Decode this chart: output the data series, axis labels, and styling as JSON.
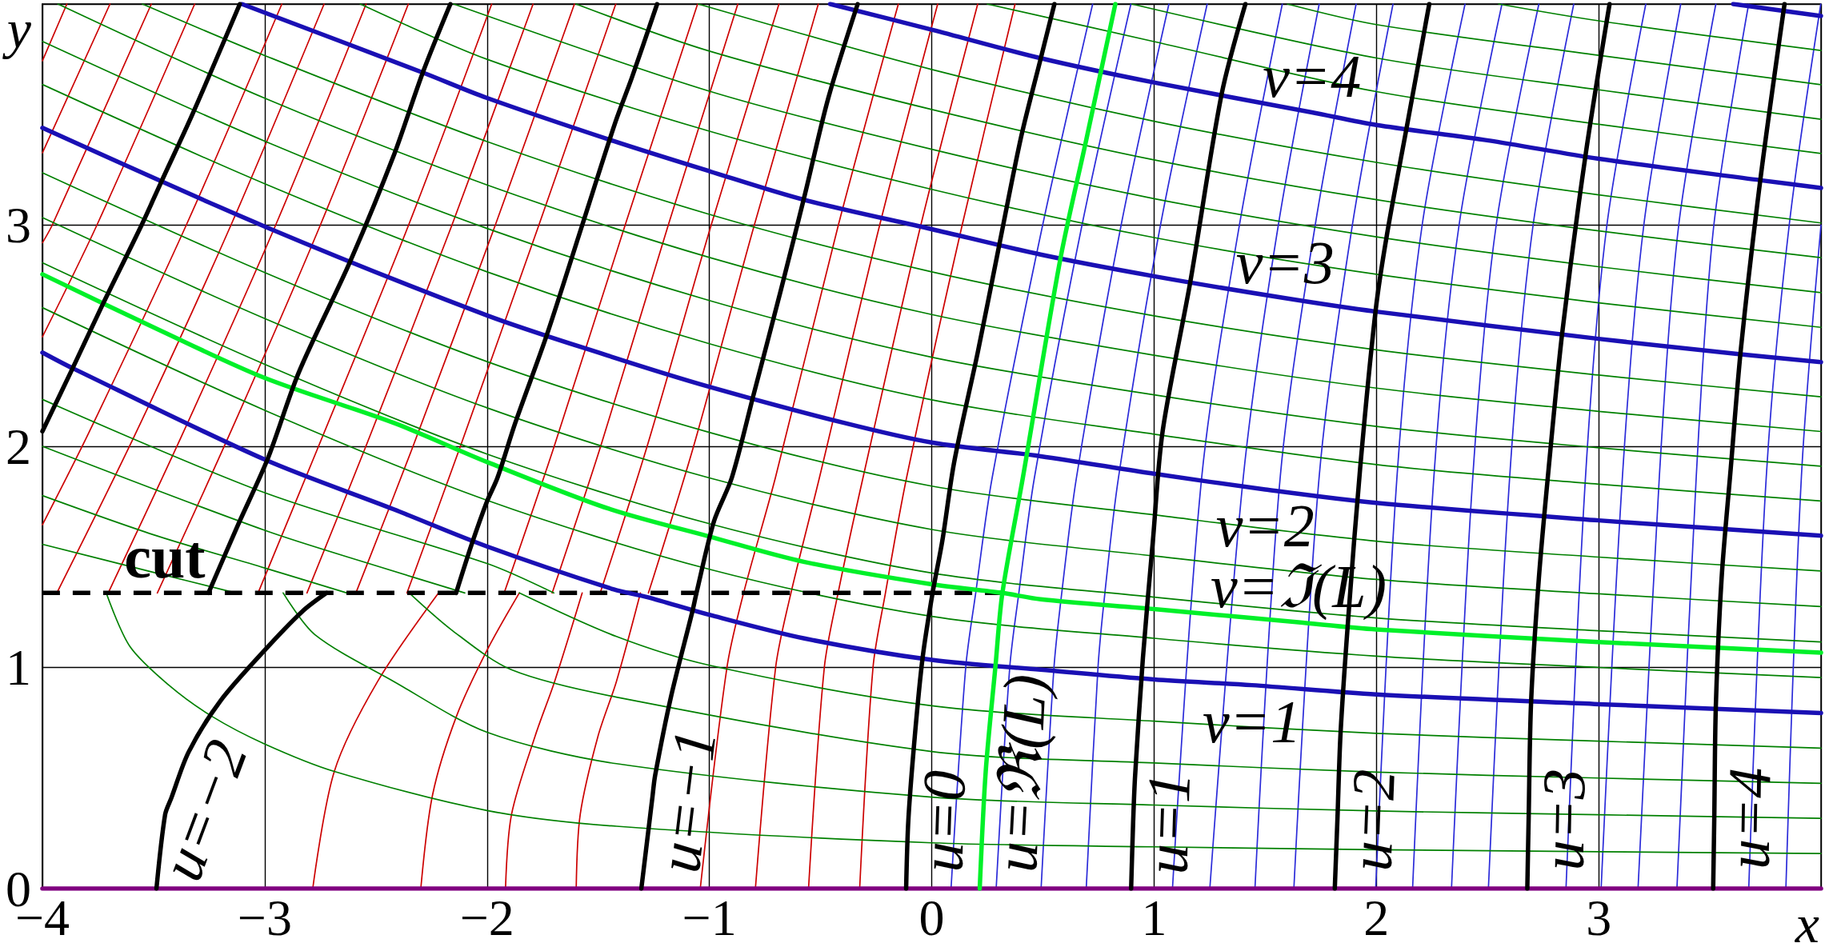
{
  "chart_data": {
    "type": "line",
    "xlabel": "x",
    "ylabel": "y",
    "xlim": [
      -4,
      4
    ],
    "ylim": [
      0,
      4
    ],
    "xticks": [
      {
        "value": -4,
        "label": "−4"
      },
      {
        "value": -3,
        "label": "−3"
      },
      {
        "value": -2,
        "label": "−2"
      },
      {
        "value": -1,
        "label": "−1"
      },
      0,
      1,
      2,
      3
    ],
    "yticks": [
      0,
      1,
      2,
      3
    ],
    "grid": true,
    "annotations": [
      {
        "text": "u=−2",
        "x": -3.42,
        "y": 0.41
      },
      {
        "text": "u=−1",
        "x": -1.256,
        "y": 0.415
      },
      {
        "text": "u=0",
        "x": -0.105,
        "y": 0.31
      },
      {
        "text": "u=ℜ(L)",
        "x": 0.243,
        "y": 0.53
      },
      {
        "text": "u=1",
        "x": 0.906,
        "y": 0.3
      },
      {
        "text": "u=2",
        "x": 1.825,
        "y": 0.315
      },
      {
        "text": "u=3",
        "x": 2.685,
        "y": 0.315
      },
      {
        "text": "u=4",
        "x": 3.52,
        "y": 0.32
      },
      {
        "text": "v=4",
        "x": 1.71,
        "y": 3.51
      },
      {
        "text": "v=3",
        "x": 1.59,
        "y": 2.67
      },
      {
        "text": "v=2",
        "x": 1.5,
        "y": 1.805
      },
      {
        "text": "v=ℑ(L)",
        "x": 1.65,
        "y": 1.204
      },
      {
        "text": "v=1",
        "x": 1.44,
        "y": 0.92
      },
      {
        "text": "cut",
        "x": -3.45,
        "y": 1.337
      }
    ],
    "series": [
      {
        "color": "#cc0000",
        "x": [
          -3.315,
          -3.755,
          -4
        ],
        "values": [
          4,
          3,
          2.495
        ]
      },
      {
        "color": "#cc0000",
        "x": [
          -3.51,
          -3.956,
          -4
        ],
        "values": [
          4,
          3,
          2.92
        ]
      },
      {
        "color": "#cc0000",
        "x": [
          -3.696,
          -4
        ],
        "values": [
          4,
          3.327
        ]
      },
      {
        "color": "#cc0000",
        "x": [
          -3.89,
          -4
        ],
        "values": [
          4,
          3.743
        ]
      },
      {
        "color": "#cc0000",
        "x": [
          -2.923,
          -3.353,
          -3.788,
          -4
        ],
        "values": [
          4,
          3,
          2.068,
          1.645
        ]
      },
      {
        "color": "#cc0000",
        "x": [
          -2.733,
          -3.152,
          -3.576,
          -3.935
        ],
        "values": [
          4,
          3,
          2.068,
          1.337
        ]
      },
      {
        "color": "#cc0000",
        "x": [
          -2.544,
          -2.951,
          -3.364,
          -3.704
        ],
        "values": [
          4,
          3,
          2.068,
          1.337
        ]
      },
      {
        "color": "#cc0000",
        "x": [
          -2.354,
          -2.75,
          -3.152,
          -3.483
        ],
        "values": [
          4,
          3,
          2.068,
          1.337
        ]
      },
      {
        "color": "#cc0000",
        "x": [
          -1.979,
          -2.353,
          -2.758,
          -3.03
        ],
        "values": [
          4,
          3,
          2,
          1.337
        ]
      },
      {
        "color": "#cc0000",
        "x": [
          -1.793,
          -2.158,
          -2.545,
          -2.81
        ],
        "values": [
          4,
          3,
          2,
          1.337
        ]
      },
      {
        "color": "#cc0000",
        "x": [
          -1.607,
          -1.963,
          -2.333,
          -2.59
        ],
        "values": [
          4,
          3,
          2,
          1.337
        ]
      },
      {
        "color": "#cc0000",
        "x": [
          -1.421,
          -1.767,
          -2.12,
          -2.36
        ],
        "values": [
          4,
          3,
          2,
          1.337
        ]
      },
      {
        "color": "#cc0000",
        "x": [
          -1.053,
          -1.379,
          -1.698,
          -1.923
        ],
        "values": [
          4,
          3,
          2,
          1.337
        ]
      },
      {
        "color": "#cc0000",
        "x": [
          -0.872,
          -1.185,
          -1.489,
          -1.707
        ],
        "values": [
          4,
          3,
          2,
          1.337
        ]
      },
      {
        "color": "#cc0000",
        "x": [
          -0.687,
          -0.992,
          -1.28,
          -1.491
        ],
        "values": [
          4,
          3,
          2,
          1.337
        ]
      },
      {
        "color": "#cc0000",
        "x": [
          -0.51,
          -0.798,
          -1.071,
          -1.274
        ],
        "values": [
          4,
          3,
          2,
          1.337
        ]
      },
      {
        "color": "#cc0000",
        "x": [
          -1.041,
          -0.921,
          -0.846,
          -0.703,
          -0.42,
          -0.15
        ],
        "values": [
          0,
          1,
          1.337,
          1.858,
          3,
          4
        ]
      },
      {
        "color": "#cc0000",
        "x": [
          -0.793,
          -0.702,
          -0.633,
          -0.505,
          -0.234,
          0.027
        ],
        "values": [
          0,
          1,
          1.337,
          1.858,
          3,
          4
        ]
      },
      {
        "color": "#cc0000",
        "x": [
          -0.554,
          -0.483,
          -0.421,
          -0.309,
          -0.049,
          0.207
        ],
        "values": [
          0,
          1,
          1.337,
          1.858,
          3,
          4
        ]
      },
      {
        "color": "#cc0000",
        "x": [
          -0.324,
          -0.264,
          -0.208,
          -0.113,
          0.137,
          0.375
        ],
        "values": [
          0,
          1,
          1.337,
          1.858,
          3,
          4
        ]
      },
      {
        "color": "#cc0000",
        "x": [
          -2.784,
          -2.687,
          -2.492,
          -2.218
        ],
        "values": [
          0,
          0.53,
          0.937,
          1.337
        ]
      },
      {
        "color": "#cc0000",
        "x": [
          -2.298,
          -2.245,
          -2.138,
          -2.0,
          -1.855
        ],
        "values": [
          0,
          0.424,
          0.778,
          1.078,
          1.337
        ]
      },
      {
        "color": "#cc0000",
        "x": [
          -1.917,
          -1.89,
          -1.784,
          -1.696,
          -1.572
        ],
        "values": [
          0,
          0.335,
          0.689,
          0.937,
          1.337
        ]
      },
      {
        "color": "#cc0000",
        "x": [
          -1.599,
          -1.581,
          -1.501,
          -1.418,
          -1.31
        ],
        "values": [
          0,
          0.335,
          0.689,
          0.937,
          1.337
        ]
      },
      {
        "color": "#2b2bd9",
        "x": [
          0.087,
          0.153,
          0.198,
          0.272,
          0.499,
          0.724
        ],
        "values": [
          0,
          1,
          1.337,
          1.858,
          3,
          4
        ]
      },
      {
        "color": "#2b2bd9",
        "x": [
          0.29,
          0.351,
          0.392,
          0.462,
          0.676,
          0.896
        ],
        "values": [
          0,
          1,
          1.337,
          1.858,
          3,
          4
        ]
      },
      {
        "color": "#2b2bd9",
        "x": [
          0.492,
          0.55,
          0.585,
          0.651,
          0.852,
          1.067
        ],
        "values": [
          0,
          1,
          1.337,
          1.858,
          3,
          4
        ]
      },
      {
        "color": "#2b2bd9",
        "x": [
          0.695,
          0.748,
          0.779,
          0.84,
          1.029,
          1.239
        ],
        "values": [
          0,
          1,
          1.337,
          1.858,
          3,
          4
        ]
      },
      {
        "color": "#2b2bd9",
        "x": [
          1.083,
          1.215,
          1.384,
          1.577
        ],
        "values": [
          0,
          1.865,
          3,
          4
        ]
      },
      {
        "color": "#2b2bd9",
        "x": [
          1.251,
          1.402,
          1.559,
          1.743
        ],
        "values": [
          0,
          1.865,
          3,
          4
        ]
      },
      {
        "color": "#2b2bd9",
        "x": [
          1.454,
          1.568,
          1.725,
          1.909
        ],
        "values": [
          0,
          1.865,
          3,
          4
        ]
      },
      {
        "color": "#2b2bd9",
        "x": [
          1.629,
          1.743,
          1.892,
          2.075
        ],
        "values": [
          0,
          1.865,
          3,
          4
        ]
      },
      {
        "color": "#2b2bd9",
        "x": [
          1.997,
          2.093,
          2.206,
          2.399
        ],
        "values": [
          0,
          1.865,
          3,
          4
        ]
      },
      {
        "color": "#2b2bd9",
        "x": [
          2.163,
          2.259,
          2.372,
          2.565
        ],
        "values": [
          0,
          1.865,
          3,
          4
        ]
      },
      {
        "color": "#2b2bd9",
        "x": [
          2.338,
          2.434,
          2.539,
          2.731
        ],
        "values": [
          0,
          1.865,
          3,
          4
        ]
      },
      {
        "color": "#2b2bd9",
        "x": [
          2.504,
          2.6,
          2.705,
          2.888
        ],
        "values": [
          0,
          1.865,
          3,
          4
        ]
      },
      {
        "color": "#2b2bd9",
        "x": [
          2.853,
          2.941,
          3.037,
          3.212
        ],
        "values": [
          0,
          1.865,
          3,
          4
        ]
      },
      {
        "color": "#2b2bd9",
        "x": [
          3.011,
          3.107,
          3.203,
          3.369
        ],
        "values": [
          0,
          1.865,
          3,
          4
        ]
      },
      {
        "color": "#2b2bd9",
        "x": [
          3.177,
          3.273,
          3.36,
          3.527
        ],
        "values": [
          0,
          1.865,
          3,
          4
        ]
      },
      {
        "color": "#2b2bd9",
        "x": [
          3.352,
          3.439,
          3.518,
          3.675
        ],
        "values": [
          0,
          1.865,
          3,
          4
        ]
      },
      {
        "color": "#2b2bd9",
        "x": [
          3.675,
          3.754,
          3.857,
          3.999
        ],
        "values": [
          0,
          1.865,
          3,
          4
        ]
      },
      {
        "color": "#2b2bd9",
        "x": [
          3.842,
          3.912,
          4
        ],
        "values": [
          0,
          1.865,
          3
        ]
      },
      {
        "color": "#008000",
        "x": [
          -4,
          -3,
          -2,
          -1,
          0,
          1,
          2,
          3,
          4
        ],
        "values": [
          2.627,
          2.163,
          1.756,
          1.444,
          1.231,
          1.132,
          1.051,
          1.0,
          0.954
        ]
      },
      {
        "color": "#008000",
        "x": [
          -4,
          -3,
          -2,
          -1,
          0,
          1,
          2,
          3,
          4
        ],
        "values": [
          2.83,
          2.371,
          1.965,
          1.65,
          1.427,
          1.318,
          1.224,
          1.166,
          1.115
        ]
      },
      {
        "color": "#008000",
        "x": [
          -4,
          -3,
          -2,
          -1,
          0,
          1,
          2,
          3,
          4
        ],
        "values": [
          3.034,
          2.578,
          2.174,
          1.857,
          1.624,
          1.504,
          1.398,
          1.333,
          1.275
        ]
      },
      {
        "color": "#008000",
        "x": [
          -4,
          -3,
          -2,
          -1,
          0,
          1,
          2,
          3,
          4
        ],
        "values": [
          3.237,
          2.786,
          2.383,
          2.063,
          1.82,
          1.69,
          1.571,
          1.499,
          1.436
        ]
      },
      {
        "color": "#008000",
        "x": [
          -4,
          -3,
          -2,
          -1,
          0,
          1,
          2,
          3,
          4
        ],
        "values": [
          3.636,
          3.187,
          2.789,
          2.464,
          2.21,
          2.055,
          1.917,
          1.829,
          1.753
        ]
      },
      {
        "color": "#008000",
        "x": [
          -4,
          -3,
          -2,
          -1,
          0,
          1,
          2,
          3,
          4
        ],
        "values": [
          3.831,
          3.38,
          2.985,
          2.659,
          2.403,
          2.233,
          2.09,
          1.993,
          1.91
        ]
      },
      {
        "color": "#008000",
        "x": [
          -3.93,
          -3,
          -2,
          -1,
          0,
          1,
          2,
          3,
          4
        ],
        "values": [
          4,
          3.574,
          3.182,
          2.854,
          2.596,
          2.412,
          2.263,
          2.158,
          2.067
        ]
      },
      {
        "color": "#008000",
        "x": [
          -3.55,
          -3,
          -2,
          -1,
          0,
          1,
          2,
          3,
          4
        ],
        "values": [
          4,
          3.767,
          3.378,
          3.049,
          2.789,
          2.59,
          2.436,
          2.322,
          2.224
        ]
      },
      {
        "color": "#008000",
        "x": [
          -2.57,
          -2,
          -1,
          0,
          1,
          2,
          3,
          4
        ],
        "values": [
          4,
          3.75,
          3.425,
          3.162,
          2.944,
          2.778,
          2.649,
          2.538
        ]
      },
      {
        "color": "#008000",
        "x": [
          -2.15,
          -1,
          0,
          1,
          2,
          3,
          4
        ],
        "values": [
          4,
          3.606,
          3.343,
          3.12,
          2.947,
          2.812,
          2.695
        ]
      },
      {
        "color": "#008000",
        "x": [
          -1.6,
          -1,
          0,
          1,
          2,
          3,
          4
        ],
        "values": [
          4,
          3.787,
          3.523,
          3.295,
          3.115,
          2.974,
          2.853
        ]
      },
      {
        "color": "#008000",
        "x": [
          -1.05,
          0,
          1,
          2,
          3,
          4
        ],
        "values": [
          4,
          3.704,
          3.47,
          3.284,
          3.137,
          3.01
        ]
      },
      {
        "color": "#008000",
        "x": [
          0.25,
          1,
          2,
          3,
          4
        ],
        "values": [
          4,
          3.83,
          3.604,
          3.456,
          3.324
        ]
      },
      {
        "color": "#008000",
        "x": [
          0.9,
          2,
          3,
          4
        ],
        "values": [
          4,
          3.756,
          3.612,
          3.479
        ]
      },
      {
        "color": "#008000",
        "x": [
          1.6,
          2,
          3,
          4
        ],
        "values": [
          4,
          3.907,
          3.768,
          3.635
        ]
      },
      {
        "color": "#008000",
        "x": [
          2.55,
          3,
          4
        ],
        "values": [
          4,
          3.924,
          3.79
        ]
      },
      {
        "color": "#008000",
        "x": [
          -4,
          -3.5,
          -3.13
        ],
        "values": [
          1.557,
          1.43,
          1.337
        ]
      },
      {
        "color": "#008000",
        "x": [
          -4,
          -3.5,
          -3,
          -2.63
        ],
        "values": [
          1.777,
          1.6,
          1.45,
          1.337
        ]
      },
      {
        "color": "#008000",
        "x": [
          -4,
          -3,
          -2.5,
          -2.1
        ],
        "values": [
          2.0,
          1.62,
          1.46,
          1.337
        ]
      },
      {
        "color": "#008000",
        "x": [
          -4,
          -3,
          -2,
          -1.7
        ],
        "values": [
          2.212,
          1.79,
          1.47,
          1.337
        ]
      },
      {
        "color": "#008000",
        "x": [
          -3.713,
          -3.607,
          -3.43,
          -3.236,
          -3,
          -2.687,
          -2,
          -1.418,
          0,
          1,
          2,
          3,
          4
        ],
        "values": [
          1.337,
          1.096,
          0.919,
          0.778,
          0.654,
          0.53,
          0.353,
          0.282,
          0.207,
          0.189,
          0.176,
          0.167,
          0.159
        ]
      },
      {
        "color": "#008000",
        "x": [
          -2.917,
          -2.775,
          -2.42,
          -2,
          -1.418,
          0,
          1,
          2,
          3,
          4
        ],
        "values": [
          1.337,
          1.149,
          0.937,
          0.707,
          0.565,
          0.414,
          0.378,
          0.351,
          0.334,
          0.318
        ]
      },
      {
        "color": "#008000",
        "x": [
          -2.35,
          -2.156,
          -1.891,
          -1.418,
          0,
          1,
          2,
          3,
          4
        ],
        "values": [
          1.337,
          1.167,
          0.99,
          0.866,
          0.62,
          0.568,
          0.527,
          0.5,
          0.476
        ]
      },
      {
        "color": "#008000",
        "x": [
          -1.855,
          -1.418,
          -1,
          0,
          1,
          2,
          3,
          4
        ],
        "values": [
          1.337,
          1.14,
          1.01,
          0.827,
          0.757,
          0.702,
          0.667,
          0.635
        ]
      },
      {
        "color": "#800080",
        "x": [
          -4,
          4
        ],
        "values": [
          0,
          0
        ]
      },
      {
        "color": "#000000",
        "line_style": "dashed",
        "x": [
          -4,
          0.318
        ],
        "values": [
          1.337,
          1.337
        ]
      },
      {
        "color": "#1a10b4",
        "x": [
          -4,
          -3.864,
          -3,
          -2.42,
          -2,
          -1.43,
          -1.279,
          -1,
          -0.572,
          0,
          0.49,
          1,
          1.44,
          2,
          3,
          4
        ],
        "values": [
          2.424,
          2.353,
          1.94,
          1.715,
          1.547,
          1.353,
          1.318,
          1.238,
          1.131,
          1.034,
          0.99,
          0.946,
          0.92,
          0.878,
          0.834,
          0.794
        ]
      },
      {
        "color": "#1a10b4",
        "x": [
          -4,
          -3,
          -2,
          -1.456,
          -1,
          -0.395,
          0,
          0.49,
          1,
          1.5,
          2,
          3,
          4
        ],
        "values": [
          3.44,
          2.994,
          2.592,
          2.41,
          2.269,
          2.106,
          2.017,
          1.955,
          1.876,
          1.805,
          1.744,
          1.665,
          1.596
        ]
      },
      {
        "color": "#1a10b4",
        "x": [
          -3.103,
          -2.289,
          -2,
          -1.43,
          -1,
          -0.572,
          0,
          0.49,
          1,
          1.59,
          2,
          3,
          3.64,
          4
        ],
        "values": [
          4,
          3.69,
          3.575,
          3.38,
          3.244,
          3.114,
          2.982,
          2.867,
          2.769,
          2.67,
          2.609,
          2.486,
          2.416,
          2.381
        ]
      },
      {
        "color": "#1a10b4",
        "x": [
          -0.457,
          0,
          0.49,
          1,
          1.71,
          2,
          2.504,
          3,
          3.728,
          4
        ],
        "values": [
          4,
          3.884,
          3.755,
          3.645,
          3.51,
          3.453,
          3.383,
          3.3,
          3.203,
          3.168
        ]
      },
      {
        "color": "#1a10b4",
        "x": [
          3.605,
          4
        ],
        "values": [
          4,
          3.946
        ]
      },
      {
        "color": "#00f029",
        "x": [
          -4,
          -3.483,
          -3,
          -2.42,
          -2,
          -1.456,
          -1,
          -0.572,
          0,
          0.318,
          0.49,
          1,
          1.65,
          2,
          3,
          4
        ],
        "values": [
          2.778,
          2.53,
          2.309,
          2.106,
          1.929,
          1.719,
          1.592,
          1.477,
          1.376,
          1.337,
          1.308,
          1.264,
          1.204,
          1.172,
          1.115,
          1.067
        ]
      },
      {
        "color": "#00f029",
        "x": [
          0.216,
          0.243,
          0.287,
          0.318,
          0.41,
          0.579,
          0.694,
          0.826
        ],
        "values": [
          0,
          0.53,
          1.008,
          1.337,
          1.858,
          2.849,
          3.38,
          4
        ]
      },
      {
        "color": "#000000",
        "x": [
          -4,
          -3.864,
          -3.731,
          -3.554,
          -3.466,
          -3.324,
          -3.112
        ],
        "values": [
          2.068,
          2.353,
          2.637,
          3.0,
          3.194,
          3.504,
          4
        ]
      },
      {
        "color": "#000000",
        "x": [
          -3.253,
          -3.12,
          -2.988,
          -2.846,
          -2.616,
          -2.422,
          -2.289,
          -2.165
        ],
        "values": [
          1.337,
          1.645,
          1.94,
          2.336,
          2.835,
          3.309,
          3.69,
          4
        ]
      },
      {
        "color": "#000000",
        "x": [
          -2.139,
          -2.069,
          -2.0,
          -1.953,
          -1.873,
          -1.731,
          -1.572,
          -1.422,
          -1.35,
          -1.235
        ],
        "values": [
          1.337,
          1.557,
          1.751,
          1.858,
          2.106,
          2.504,
          3.0,
          3.468,
          3.663,
          4
        ]
      },
      {
        "color": "#000000",
        "x": [
          -3.487,
          -3.448,
          -3.42,
          -3.342,
          -3.2,
          -3.0,
          -2.829,
          -2.722
        ],
        "values": [
          0,
          0.335,
          0.41,
          0.618,
          0.848,
          1.078,
          1.255,
          1.337
        ]
      },
      {
        "color": "#000000",
        "x": [
          -1.306,
          -1.256,
          -1.244,
          -1.173,
          -1.076,
          -1.058,
          -0.979,
          -0.899,
          -0.802,
          -0.678,
          -0.572,
          -0.465,
          -0.333
        ],
        "values": [
          0,
          0.415,
          0.512,
          0.866,
          1.255,
          1.337,
          1.662,
          1.858,
          2.23,
          2.708,
          3.132,
          3.575,
          4
        ]
      },
      {
        "color": "#000000",
        "x": [
          -0.115,
          -0.105,
          -0.076,
          -0.041,
          0.004,
          0.048,
          0.101,
          0.207,
          0.304,
          0.402,
          0.49,
          0.552
        ],
        "values": [
          0,
          0.31,
          0.689,
          1.043,
          1.337,
          1.574,
          1.928,
          2.424,
          2.911,
          3.398,
          3.752,
          4
        ]
      },
      {
        "color": "#000000",
        "x": [
          0.897,
          0.906,
          0.915,
          0.95,
          0.995,
          1.039,
          1.163,
          1.304,
          1.411
        ],
        "values": [
          0,
          0.3,
          0.512,
          1.043,
          1.574,
          2.07,
          2.742,
          3.592,
          4
        ]
      },
      {
        "color": "#000000",
        "x": [
          1.813,
          1.825,
          1.839,
          1.874,
          1.927,
          1.997,
          2.049,
          2.136,
          2.238
        ],
        "values": [
          0,
          0.315,
          0.703,
          1.228,
          1.9,
          2.616,
          2.965,
          3.439,
          4
        ]
      },
      {
        "color": "#000000",
        "x": [
          2.679,
          2.685,
          2.696,
          2.731,
          2.775,
          2.836,
          2.941,
          3.049
        ],
        "values": [
          0,
          0.315,
          0.843,
          1.404,
          1.9,
          2.512,
          3.317,
          4
        ]
      },
      {
        "color": "#000000",
        "x": [
          3.515,
          3.52,
          3.527,
          3.553,
          3.594,
          3.64,
          3.728,
          3.836
        ],
        "values": [
          0,
          0.32,
          0.826,
          1.404,
          1.9,
          2.443,
          3.212,
          4
        ]
      }
    ]
  }
}
